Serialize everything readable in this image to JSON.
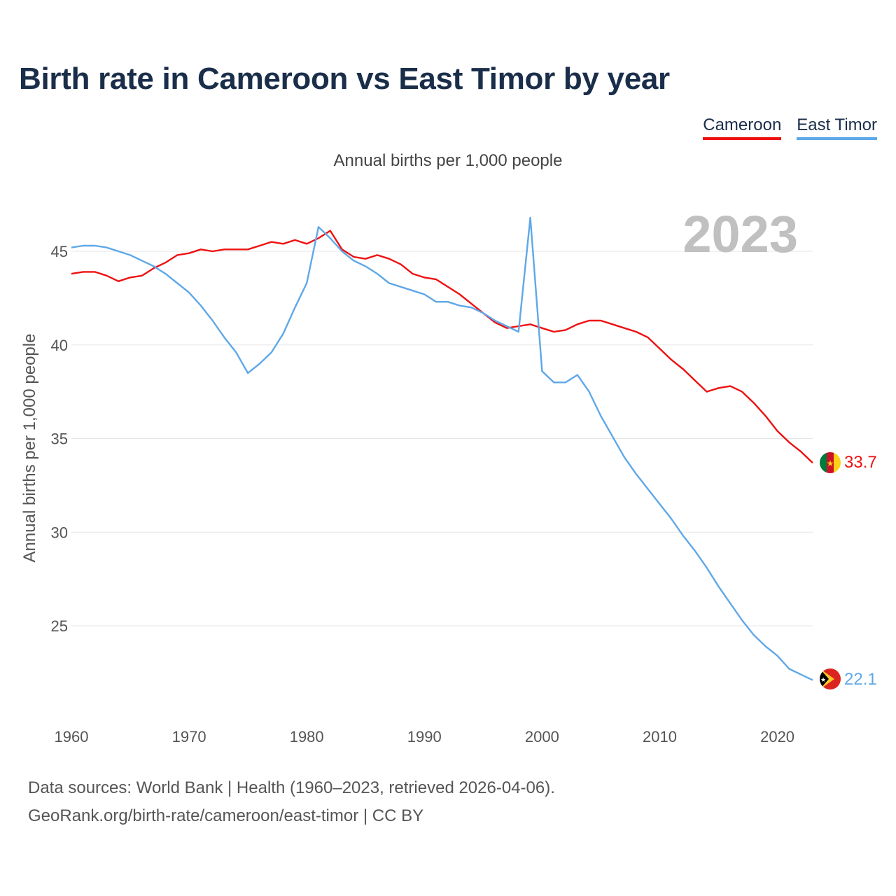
{
  "title": "Birth rate in Cameroon vs East Timor by year",
  "subtitle": "Annual births per 1,000 people",
  "footer": {
    "line1": "Data sources: World Bank | Health (1960–2023, retrieved 2026-04-06).",
    "line2": "GeoRank.org/birth-rate/cameroon/east-timor | CC BY"
  },
  "colors": {
    "cameroon": "#ee1111",
    "east_timor": "#5fa8e8",
    "year_watermark": "#c0c0c0",
    "grid": "#e6e6e6"
  },
  "chart_data": {
    "type": "line",
    "title": "Birth rate in Cameroon vs East Timor by year",
    "xlabel": "",
    "ylabel": "Annual births per 1,000 people",
    "year_label": "2023",
    "xlim": [
      1960,
      2023
    ],
    "ylim": [
      21,
      47
    ],
    "xticks": [
      1960,
      1970,
      1980,
      1990,
      2000,
      2010,
      2020
    ],
    "yticks": [
      25,
      30,
      35,
      40,
      45
    ],
    "x": [
      1960,
      1961,
      1962,
      1963,
      1964,
      1965,
      1966,
      1967,
      1968,
      1969,
      1970,
      1971,
      1972,
      1973,
      1974,
      1975,
      1976,
      1977,
      1978,
      1979,
      1980,
      1981,
      1982,
      1983,
      1984,
      1985,
      1986,
      1987,
      1988,
      1989,
      1990,
      1991,
      1992,
      1993,
      1994,
      1995,
      1996,
      1997,
      1998,
      1999,
      2000,
      2001,
      2002,
      2003,
      2004,
      2005,
      2006,
      2007,
      2008,
      2009,
      2010,
      2011,
      2012,
      2013,
      2014,
      2015,
      2016,
      2017,
      2018,
      2019,
      2020,
      2021,
      2022,
      2023
    ],
    "series": [
      {
        "name": "Cameroon",
        "color": "#ee1111",
        "end_label": "33.7",
        "values": [
          43.8,
          43.9,
          43.9,
          43.7,
          43.4,
          43.6,
          43.7,
          44.1,
          44.4,
          44.8,
          44.9,
          45.1,
          45.0,
          45.1,
          45.1,
          45.1,
          45.3,
          45.5,
          45.4,
          45.6,
          45.4,
          45.7,
          46.1,
          45.1,
          44.7,
          44.6,
          44.8,
          44.6,
          44.3,
          43.8,
          43.6,
          43.5,
          43.1,
          42.7,
          42.2,
          41.7,
          41.2,
          40.9,
          41.0,
          41.1,
          40.9,
          40.7,
          40.8,
          41.1,
          41.3,
          41.3,
          41.1,
          40.9,
          40.7,
          40.4,
          39.8,
          39.2,
          38.7,
          38.1,
          37.5,
          37.7,
          37.8,
          37.5,
          36.9,
          36.2,
          35.4,
          34.8,
          34.3,
          33.7
        ]
      },
      {
        "name": "East Timor",
        "color": "#5fa8e8",
        "end_label": "22.1",
        "values": [
          45.2,
          45.3,
          45.3,
          45.2,
          45.0,
          44.8,
          44.5,
          44.2,
          43.8,
          43.3,
          42.8,
          42.1,
          41.3,
          40.4,
          39.6,
          38.5,
          39.0,
          39.6,
          40.6,
          42.0,
          43.3,
          46.3,
          45.7,
          45.0,
          44.5,
          44.2,
          43.8,
          43.3,
          43.1,
          42.9,
          42.7,
          42.3,
          42.3,
          42.1,
          42.0,
          41.7,
          41.3,
          41.0,
          40.7,
          46.8,
          38.6,
          38.0,
          38.0,
          38.4,
          37.5,
          36.2,
          35.1,
          34.0,
          33.1,
          32.3,
          31.5,
          30.7,
          29.8,
          29.0,
          28.1,
          27.1,
          26.2,
          25.3,
          24.5,
          23.9,
          23.4,
          22.7,
          22.4,
          22.1
        ]
      }
    ]
  }
}
